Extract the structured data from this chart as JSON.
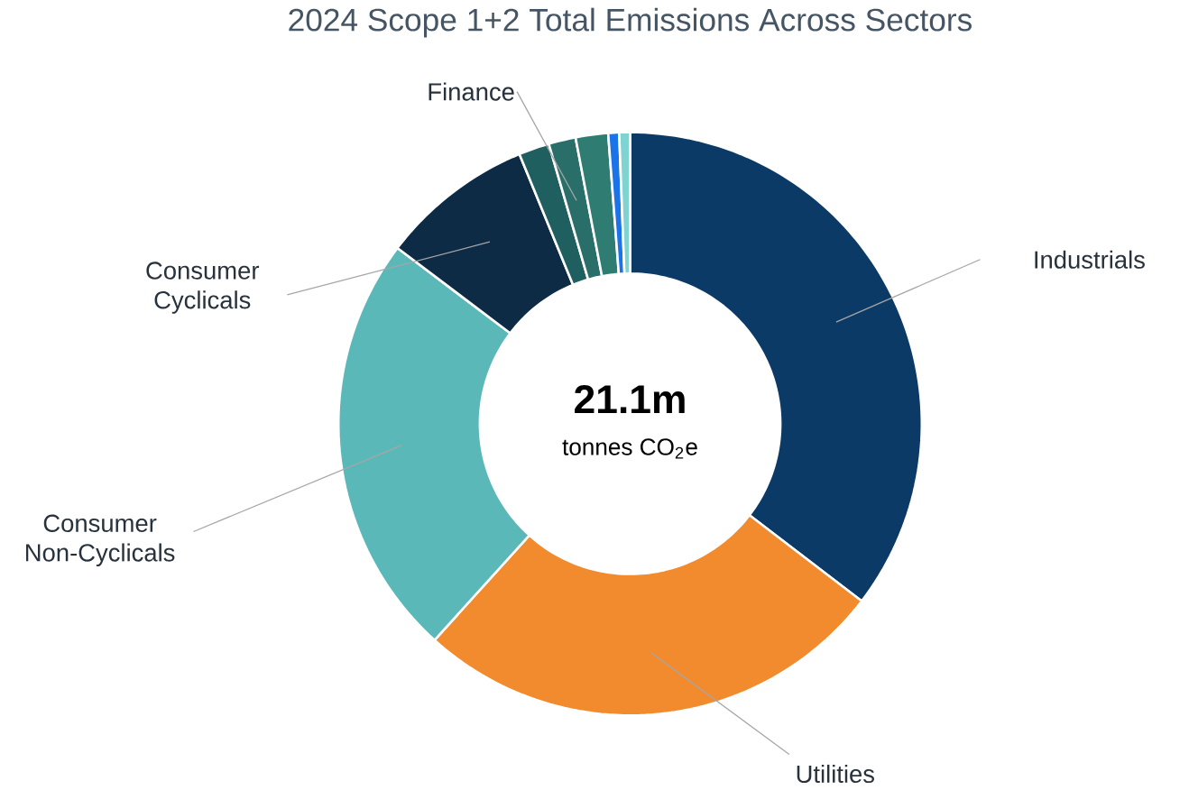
{
  "chart_data": {
    "type": "donut",
    "title": "2024 Scope 1+2 Total Emissions Across Sectors",
    "categories": [
      "Industrials",
      "Utilities",
      "Consumer Non-Cyclicals",
      "Consumer Cyclicals",
      null,
      "Finance",
      null,
      null,
      null
    ],
    "values": [
      35.4,
      26.3,
      23.6,
      8.5,
      1.7,
      1.5,
      1.8,
      0.6,
      0.6
    ],
    "colors": [
      "#0b3a66",
      "#f28a2e",
      "#5bb8b8",
      "#0d2b45",
      "#1f5f5f",
      "#2a6e6a",
      "#2f7d72",
      "#1a73e8",
      "#7fd3d0"
    ],
    "annotations": [
      "21.1m",
      "tonnes CO$_{2}$e"
    ]
  }
}
